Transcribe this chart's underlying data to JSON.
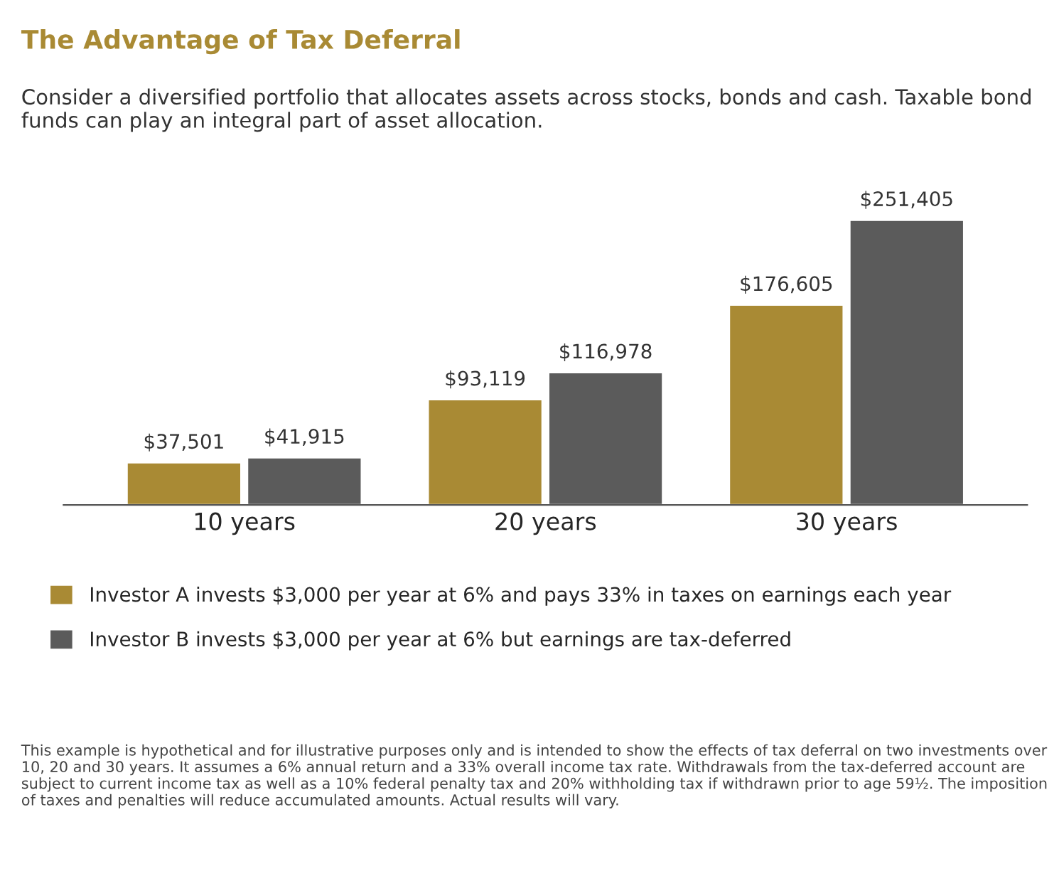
{
  "chart_data": {
    "type": "bar",
    "title": "The Advantage of Tax Deferral",
    "subtitle": "Consider a diversified portfolio that allocates assets across stocks, bonds and cash. Taxable bond funds can play an integral part of asset allocation.",
    "categories": [
      "10 years",
      "20 years",
      "30 years"
    ],
    "series": [
      {
        "name": "Investor A invests $3,000 per year at 6% and pays 33% in taxes on earnings each year",
        "color": "#a98a34",
        "values": [
          37501,
          93119,
          176605
        ],
        "value_labels": [
          "$37,501",
          "$93,119",
          "$176,605"
        ]
      },
      {
        "name": "Investor B invests $3,000 per year at 6% but earnings are tax-deferred",
        "color": "#5b5b5b",
        "values": [
          41915,
          116978,
          251405
        ],
        "value_labels": [
          "$41,915",
          "$116,978",
          "$251,405"
        ]
      }
    ],
    "legend": "bottom",
    "grid": false,
    "tick_labels": "x",
    "annotations": [
      "This example is hypothetical and for illustrative purposes only and is intended to show the effects of tax deferral on two investments over 10, 20 and 30 years. It assumes a 6% annual return and a 33% overall income tax rate. Withdrawals from the tax-deferred account are subject to current income tax as well as a 10% federal penalty tax and 20% withholding tax if withdrawn prior to age 59½. The imposition of taxes and penalties will reduce accumulated amounts. Actual results will vary."
    ]
  }
}
